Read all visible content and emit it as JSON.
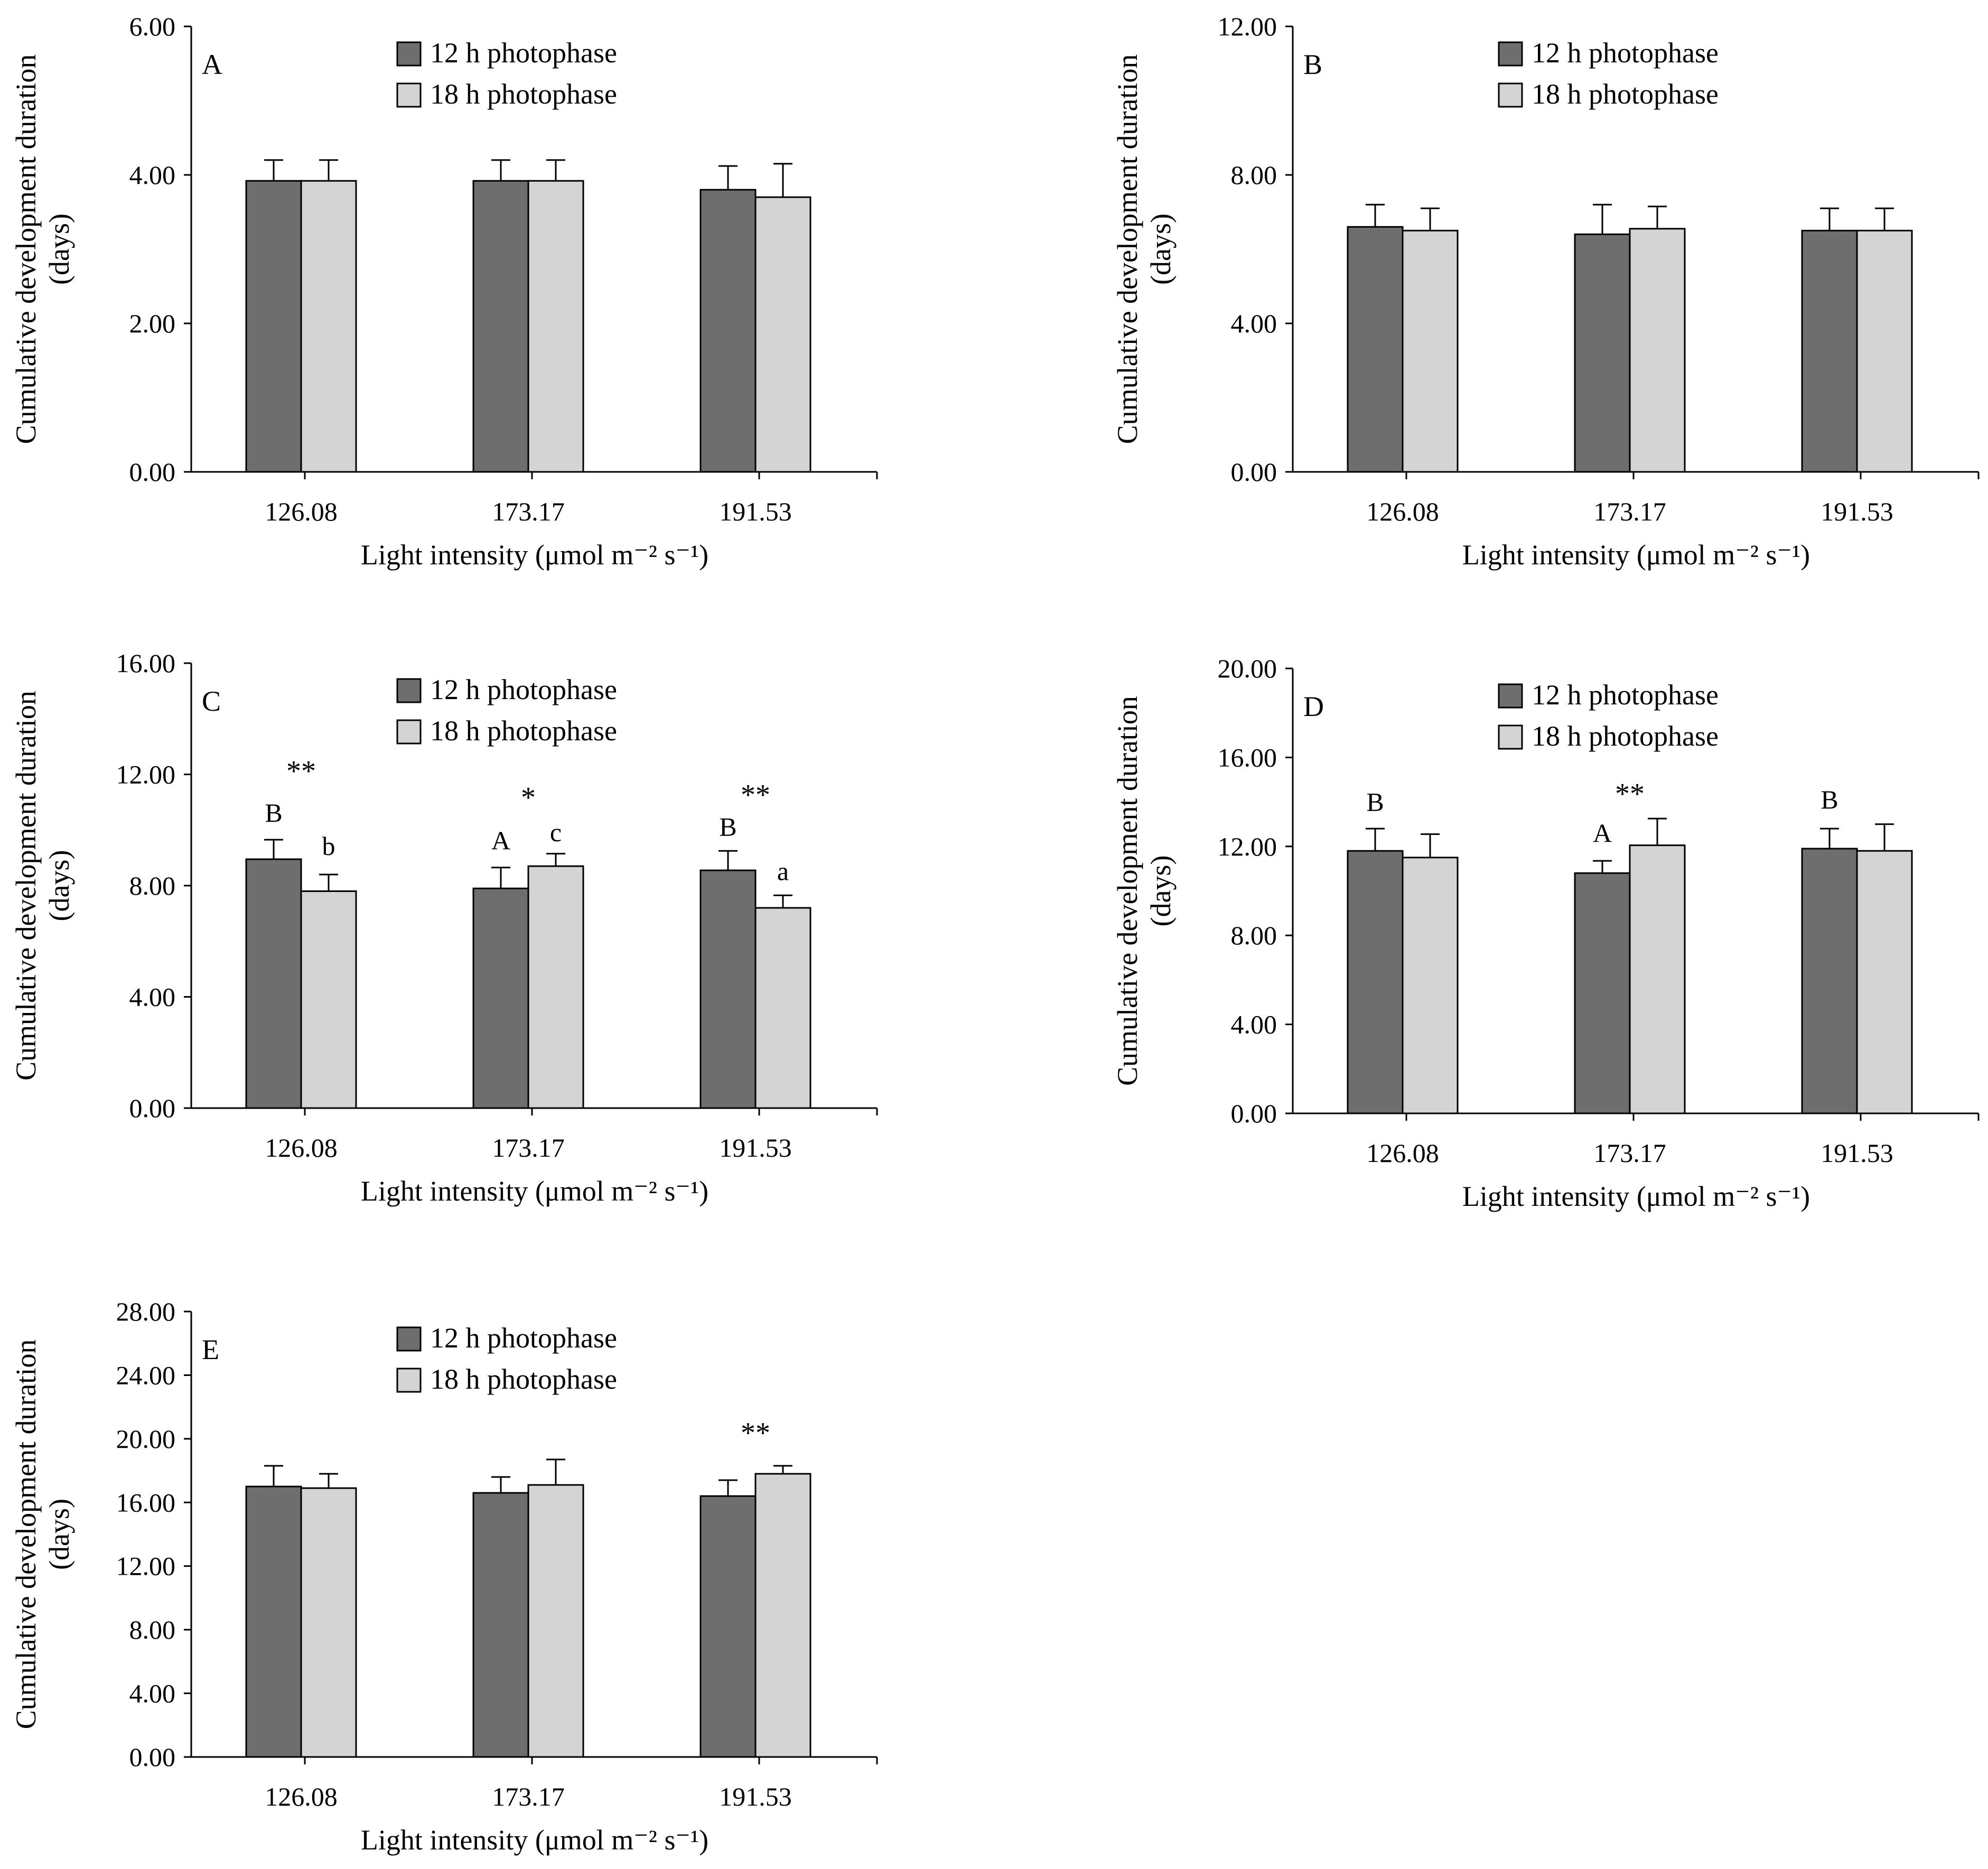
{
  "legend": {
    "series1": "12 h photophase",
    "series2": "18 h photophase"
  },
  "colors": {
    "series1": "#6e6e6e",
    "series2": "#d4d4d4",
    "stroke": "#000000"
  },
  "chart_data": [
    {
      "type": "bar",
      "panel": "A",
      "categories": [
        "126.08",
        "173.17",
        "191.53"
      ],
      "series": [
        {
          "name": "12 h photophase",
          "values": [
            3.92,
            3.92,
            3.8
          ],
          "errors": [
            0.28,
            0.28,
            0.32
          ]
        },
        {
          "name": "18 h photophase",
          "values": [
            3.92,
            3.92,
            3.7
          ],
          "errors": [
            0.28,
            0.28,
            0.45
          ]
        }
      ],
      "yticks": [
        "0.00",
        "2.00",
        "4.00",
        "6.00"
      ],
      "ylim": [
        0,
        6
      ],
      "xlabel": "Light intensity (μmol m⁻² s⁻¹)",
      "ylabel": "Cumulative development duration",
      "ylabel2": "(days)",
      "annotations": []
    },
    {
      "type": "bar",
      "panel": "B",
      "categories": [
        "126.08",
        "173.17",
        "191.53"
      ],
      "series": [
        {
          "name": "12 h photophase",
          "values": [
            6.6,
            6.4,
            6.5
          ],
          "errors": [
            0.6,
            0.8,
            0.6
          ]
        },
        {
          "name": "18 h photophase",
          "values": [
            6.5,
            6.55,
            6.5
          ],
          "errors": [
            0.6,
            0.6,
            0.6
          ]
        }
      ],
      "yticks": [
        "0.00",
        "4.00",
        "8.00",
        "12.00"
      ],
      "ylim": [
        0,
        12
      ],
      "xlabel": "Light intensity (μmol m⁻² s⁻¹)",
      "ylabel": "Cumulative development duration",
      "ylabel2": "(days)",
      "annotations": []
    },
    {
      "type": "bar",
      "panel": "C",
      "categories": [
        "126.08",
        "173.17",
        "191.53"
      ],
      "series": [
        {
          "name": "12 h photophase",
          "values": [
            8.95,
            7.9,
            8.55
          ],
          "errors": [
            0.7,
            0.75,
            0.7
          ]
        },
        {
          "name": "18 h photophase",
          "values": [
            7.8,
            8.7,
            7.2
          ],
          "errors": [
            0.6,
            0.45,
            0.45
          ]
        }
      ],
      "yticks": [
        "0.00",
        "4.00",
        "8.00",
        "12.00",
        "16.00"
      ],
      "ylim": [
        0,
        16
      ],
      "xlabel": "Light intensity (μmol m⁻² s⁻¹)",
      "ylabel": "Cumulative development duration",
      "ylabel2": "(days)",
      "annotations": [
        {
          "text": "**",
          "cat": 0,
          "pos": "center",
          "value": 12.3,
          "kind": "star"
        },
        {
          "text": "B",
          "cat": 0,
          "pos": "s1",
          "value": 10.3,
          "kind": "letter"
        },
        {
          "text": "b",
          "cat": 0,
          "pos": "s2",
          "value": 9.1,
          "kind": "letter"
        },
        {
          "text": "*",
          "cat": 1,
          "pos": "center",
          "value": 11.35,
          "kind": "star"
        },
        {
          "text": "A",
          "cat": 1,
          "pos": "s1",
          "value": 9.3,
          "kind": "letter"
        },
        {
          "text": "c",
          "cat": 1,
          "pos": "s2",
          "value": 9.6,
          "kind": "letter"
        },
        {
          "text": "B",
          "cat": 2,
          "pos": "s1",
          "value": 9.8,
          "kind": "letter"
        },
        {
          "text": "**",
          "cat": 2,
          "pos": "center",
          "value": 11.45,
          "kind": "star"
        },
        {
          "text": "a",
          "cat": 2,
          "pos": "s2",
          "value": 8.2,
          "kind": "letter"
        }
      ]
    },
    {
      "type": "bar",
      "panel": "D",
      "categories": [
        "126.08",
        "173.17",
        "191.53"
      ],
      "series": [
        {
          "name": "12 h photophase",
          "values": [
            11.8,
            10.8,
            11.9
          ],
          "errors": [
            1.0,
            0.55,
            0.9
          ]
        },
        {
          "name": "18 h photophase",
          "values": [
            11.5,
            12.05,
            11.8
          ],
          "errors": [
            1.05,
            1.2,
            1.2
          ]
        }
      ],
      "yticks": [
        "0.00",
        "4.00",
        "8.00",
        "12.00",
        "16.00",
        "20.00"
      ],
      "ylim": [
        0,
        20
      ],
      "xlabel": "Light intensity (μmol m⁻² s⁻¹)",
      "ylabel": "Cumulative development duration",
      "ylabel2": "(days)",
      "annotations": [
        {
          "text": "B",
          "cat": 0,
          "pos": "s1",
          "value": 13.6,
          "kind": "letter"
        },
        {
          "text": "**",
          "cat": 1,
          "pos": "center",
          "value": 14.6,
          "kind": "star"
        },
        {
          "text": "A",
          "cat": 1,
          "pos": "s1",
          "value": 12.2,
          "kind": "letter"
        },
        {
          "text": "B",
          "cat": 2,
          "pos": "s1",
          "value": 13.7,
          "kind": "letter"
        }
      ]
    },
    {
      "type": "bar",
      "panel": "E",
      "categories": [
        "126.08",
        "173.17",
        "191.53"
      ],
      "series": [
        {
          "name": "12 h photophase",
          "values": [
            17.0,
            16.6,
            16.4
          ],
          "errors": [
            1.3,
            1.0,
            1.0
          ]
        },
        {
          "name": "18 h photophase",
          "values": [
            16.9,
            17.1,
            17.8
          ],
          "errors": [
            0.9,
            1.6,
            0.5
          ]
        }
      ],
      "yticks": [
        "0.00",
        "4.00",
        "8.00",
        "12.00",
        "16.00",
        "20.00",
        "24.00",
        "28.00"
      ],
      "ylim": [
        0,
        28
      ],
      "xlabel": "Light intensity (μmol m⁻² s⁻¹)",
      "ylabel": "Cumulative development duration",
      "ylabel2": "(days)",
      "annotations": [
        {
          "text": "**",
          "cat": 2,
          "pos": "center",
          "value": 20.7,
          "kind": "star"
        }
      ]
    }
  ]
}
